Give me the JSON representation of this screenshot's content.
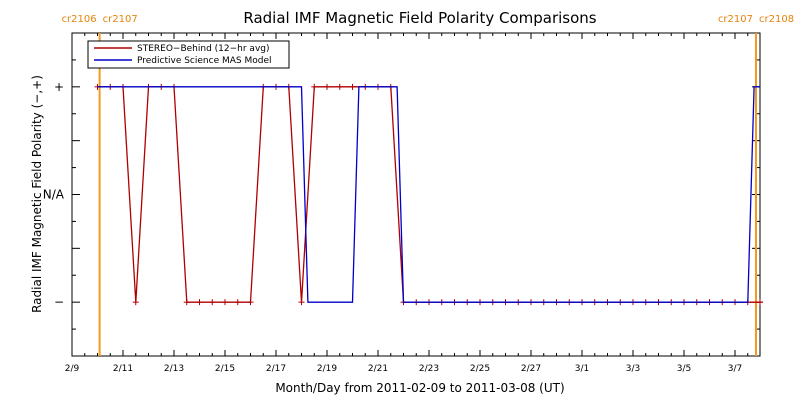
{
  "chart_data": {
    "type": "line",
    "title": "Radial IMF Magnetic Field Polarity Comparisons",
    "xlabel": "Month/Day from 2011-02-09 to 2011-03-08 (UT)",
    "ylabel": "Radial IMF Magnetic Field Polarity (−,+)",
    "xlim": [
      "2011-02-09",
      "2011-03-08"
    ],
    "ylim": [
      -1.5,
      1.5
    ],
    "x_ticks": [
      {
        "date": "2011-02-09",
        "label": "2/9"
      },
      {
        "date": "2011-02-11",
        "label": "2/11"
      },
      {
        "date": "2011-02-13",
        "label": "2/13"
      },
      {
        "date": "2011-02-15",
        "label": "2/15"
      },
      {
        "date": "2011-02-17",
        "label": "2/17"
      },
      {
        "date": "2011-02-19",
        "label": "2/19"
      },
      {
        "date": "2011-02-21",
        "label": "2/21"
      },
      {
        "date": "2011-02-23",
        "label": "2/23"
      },
      {
        "date": "2011-02-25",
        "label": "2/25"
      },
      {
        "date": "2011-02-27",
        "label": "2/27"
      },
      {
        "date": "2011-03-01",
        "label": "3/1"
      },
      {
        "date": "2011-03-03",
        "label": "3/3"
      },
      {
        "date": "2011-03-05",
        "label": "3/5"
      },
      {
        "date": "2011-03-07",
        "label": "3/7"
      }
    ],
    "y_ticks": [
      {
        "value": 1,
        "label": "+"
      },
      {
        "value": 0,
        "label": "N/A"
      },
      {
        "value": -1,
        "label": "−"
      }
    ],
    "carrington_markers": [
      {
        "date": "2011-02-10 02:00",
        "left_label": "cr2106",
        "right_label": "cr2107"
      },
      {
        "date": "2011-03-09 09:00",
        "left_label": "cr2107",
        "right_label": "cr2108"
      }
    ],
    "legend_position": "top-left",
    "series": [
      {
        "name": "STEREO−Behind (12−hr avg)",
        "color": "#b00000",
        "markers": true,
        "points": [
          [
            "2011-02-10 00:00",
            1
          ],
          [
            "2011-02-10 12:00",
            1
          ],
          [
            "2011-02-11 00:00",
            1
          ],
          [
            "2011-02-11 12:00",
            -1
          ],
          [
            "2011-02-12 00:00",
            1
          ],
          [
            "2011-02-12 12:00",
            1
          ],
          [
            "2011-02-13 00:00",
            1
          ],
          [
            "2011-02-13 12:00",
            -1
          ],
          [
            "2011-02-14 00:00",
            -1
          ],
          [
            "2011-02-14 12:00",
            -1
          ],
          [
            "2011-02-15 00:00",
            -1
          ],
          [
            "2011-02-15 12:00",
            -1
          ],
          [
            "2011-02-16 00:00",
            -1
          ],
          [
            "2011-02-16 12:00",
            1
          ],
          [
            "2011-02-17 00:00",
            1
          ],
          [
            "2011-02-17 12:00",
            1
          ],
          [
            "2011-02-18 00:00",
            -1
          ],
          [
            "2011-02-18 12:00",
            1
          ],
          [
            "2011-02-19 00:00",
            1
          ],
          [
            "2011-02-19 12:00",
            1
          ],
          [
            "2011-02-20 00:00",
            1
          ],
          [
            "2011-02-20 12:00",
            1
          ],
          [
            "2011-02-21 00:00",
            1
          ],
          [
            "2011-02-21 12:00",
            1
          ],
          [
            "2011-02-22 00:00",
            -1
          ],
          [
            "2011-02-22 12:00",
            -1
          ],
          [
            "2011-02-23 00:00",
            -1
          ],
          [
            "2011-02-23 12:00",
            -1
          ],
          [
            "2011-02-24 00:00",
            -1
          ],
          [
            "2011-02-24 12:00",
            -1
          ],
          [
            "2011-02-25 00:00",
            -1
          ],
          [
            "2011-02-25 12:00",
            -1
          ],
          [
            "2011-02-26 00:00",
            -1
          ],
          [
            "2011-02-26 12:00",
            -1
          ],
          [
            "2011-02-27 00:00",
            -1
          ],
          [
            "2011-02-27 12:00",
            -1
          ],
          [
            "2011-02-28 00:00",
            -1
          ],
          [
            "2011-02-28 12:00",
            -1
          ],
          [
            "2011-03-01 00:00",
            -1
          ],
          [
            "2011-03-01 12:00",
            -1
          ],
          [
            "2011-03-02 00:00",
            -1
          ],
          [
            "2011-03-02 12:00",
            -1
          ],
          [
            "2011-03-03 00:00",
            -1
          ],
          [
            "2011-03-03 12:00",
            -1
          ],
          [
            "2011-03-04 00:00",
            -1
          ],
          [
            "2011-03-04 12:00",
            -1
          ],
          [
            "2011-03-05 00:00",
            -1
          ],
          [
            "2011-03-05 12:00",
            -1
          ],
          [
            "2011-03-06 00:00",
            -1
          ],
          [
            "2011-03-06 12:00",
            -1
          ],
          [
            "2011-03-07 00:00",
            -1
          ],
          [
            "2011-03-07 12:00",
            -1
          ],
          [
            "2011-03-08 00:00",
            -1
          ],
          [
            "2011-03-08 12:00",
            -1
          ],
          [
            "2011-03-09 00:00",
            -1
          ]
        ]
      },
      {
        "name": "Predictive Science MAS Model",
        "color": "#0000c8",
        "markers": false,
        "points": [
          [
            "2011-02-10 00:00",
            1
          ],
          [
            "2011-02-18 00:00",
            1
          ],
          [
            "2011-02-18 06:00",
            -1
          ],
          [
            "2011-02-20 00:00",
            -1
          ],
          [
            "2011-02-20 06:00",
            1
          ],
          [
            "2011-02-21 18:00",
            1
          ],
          [
            "2011-02-22 00:00",
            -1
          ],
          [
            "2011-03-07 12:00",
            -1
          ],
          [
            "2011-03-07 18:00",
            1
          ],
          [
            "2011-03-09 12:00",
            1
          ]
        ]
      }
    ]
  }
}
